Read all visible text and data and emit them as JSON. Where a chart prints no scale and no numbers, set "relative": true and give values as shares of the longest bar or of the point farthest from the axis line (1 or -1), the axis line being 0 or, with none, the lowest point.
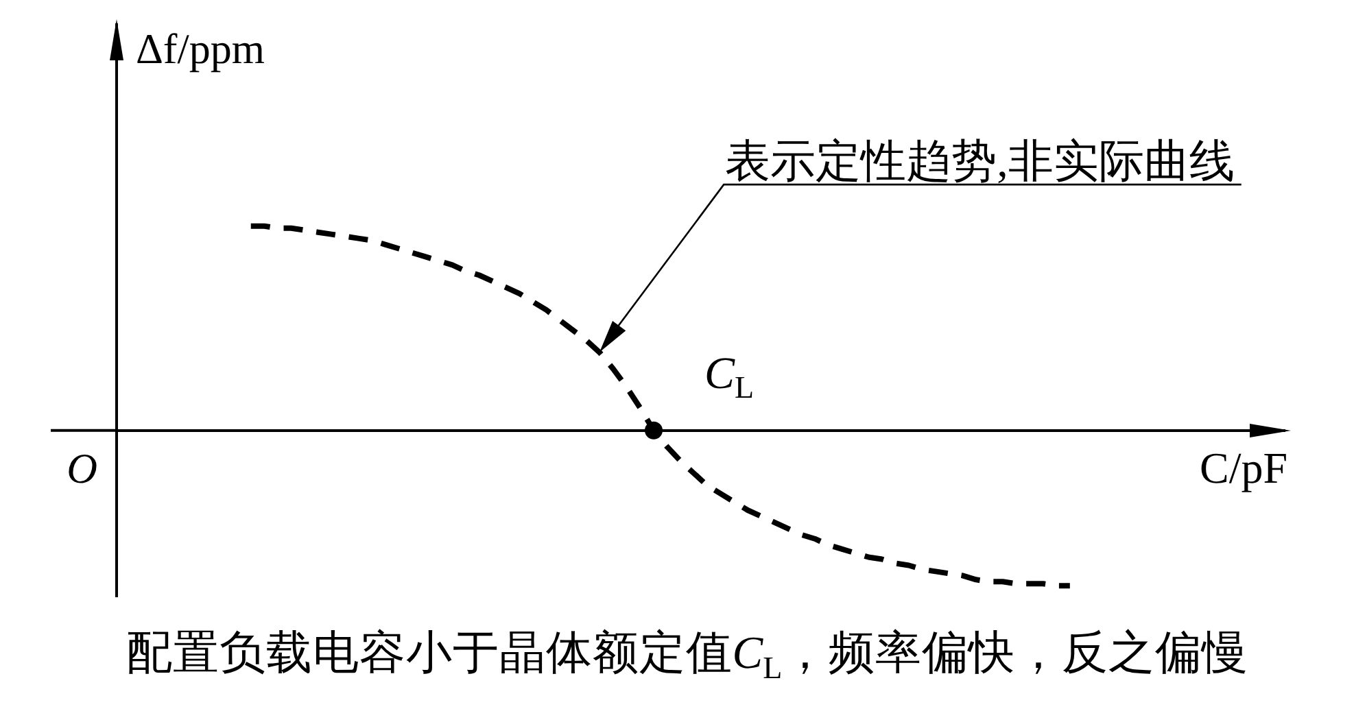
{
  "chart_data": {
    "type": "line",
    "relative": true,
    "categories": [
      null,
      null,
      null,
      null,
      null,
      null,
      null,
      null,
      null,
      null,
      null,
      null,
      null,
      null,
      null,
      null,
      null,
      null,
      null,
      null,
      null,
      null,
      null,
      null,
      null,
      null,
      null,
      null,
      null,
      null,
      null,
      null,
      null,
      null,
      null,
      null,
      null,
      null,
      null,
      null,
      null,
      null,
      null,
      null,
      null,
      null,
      null,
      null,
      null,
      null,
      null,
      null,
      null,
      null,
      null,
      null,
      null,
      null,
      null,
      null,
      null,
      null,
      null,
      null,
      null,
      null,
      null,
      null,
      null,
      null,
      null,
      null,
      null,
      null,
      null,
      null,
      null,
      null,
      null,
      null,
      null,
      null,
      null,
      null,
      null,
      null,
      null,
      null
    ],
    "series": [
      {
        "color": "#000000",
        "line_style": "dashed",
        "marker": "none",
        "values": [
          null,
          null,
          null,
          null,
          null,
          null,
          null,
          null,
          null,
          null,
          1,
          1,
          0.99,
          0.99,
          0.98,
          0.97,
          0.96,
          0.95,
          0.94,
          0.93,
          0.91,
          0.89,
          0.87,
          0.85,
          0.83,
          0.81,
          0.78,
          0.76,
          0.73,
          0.7,
          0.67,
          0.63,
          0.59,
          0.54,
          0.49,
          0.44,
          0.38,
          0.3,
          0.21,
          0.11,
          0,
          -0.08,
          -0.15,
          -0.21,
          -0.27,
          -0.31,
          -0.35,
          -0.39,
          -0.42,
          -0.45,
          -0.48,
          -0.51,
          -0.53,
          -0.56,
          -0.58,
          -0.6,
          -0.62,
          -0.63,
          -0.65,
          -0.66,
          -0.68,
          -0.69,
          -0.7,
          -0.71,
          -0.73,
          -0.74,
          -0.74,
          -0.75,
          -0.75,
          -0.75,
          -0.76,
          -0.76,
          null,
          null,
          null,
          null,
          null,
          null,
          null,
          null,
          null,
          null,
          null,
          null,
          null,
          null,
          null,
          null
        ]
      },
      {
        "color": "#000000",
        "marker": "circle",
        "values": [
          null,
          null,
          null,
          null,
          null,
          null,
          null,
          null,
          null,
          null,
          null,
          null,
          null,
          null,
          null,
          null,
          null,
          null,
          null,
          null,
          null,
          null,
          null,
          null,
          null,
          null,
          null,
          null,
          null,
          null,
          null,
          null,
          null,
          null,
          null,
          null,
          null,
          null,
          null,
          null,
          0,
          null,
          null,
          null,
          null,
          null,
          null,
          null,
          null,
          null,
          null,
          null,
          null,
          null,
          null,
          null,
          null,
          null,
          null,
          null,
          null,
          null,
          null,
          null,
          null,
          null,
          null,
          null,
          null,
          null,
          null,
          null,
          null,
          null,
          null,
          null,
          null,
          null,
          null,
          null,
          null,
          null,
          null,
          null,
          null,
          null,
          null,
          null
        ]
      }
    ],
    "xlabel": "C/pF",
    "ylabel": "Δf/ppm",
    "annotations": [
      "表示定性趋势,非实际曲线",
      "C$_{L}$",
      "O",
      "配置负载电容小于晶体额定值C$_{L}$，频率偏快，反之偏慢"
    ],
    "legend": false
  }
}
